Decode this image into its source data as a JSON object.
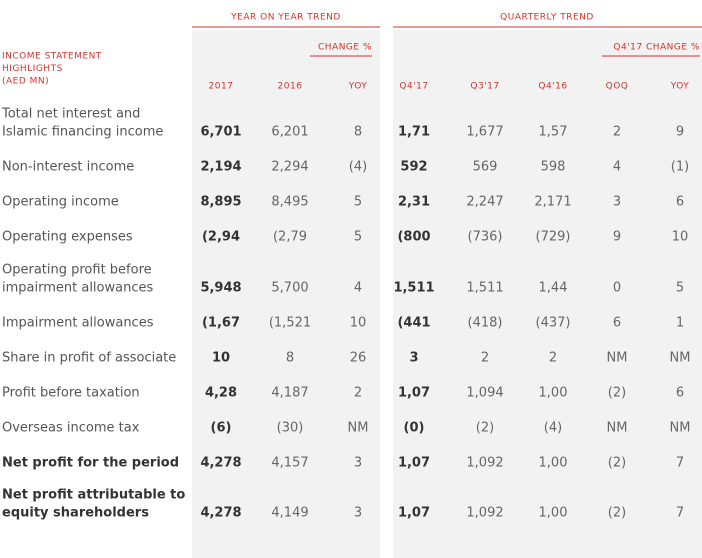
{
  "header": {
    "group_year": "YEAR ON YEAR TREND",
    "group_quarter": "QUARTERLY TREND",
    "change_year": "CHANGE %",
    "change_quarter": "Q4'17 CHANGE %",
    "row_header": [
      "INCOME STATEMENT",
      "HIGHLIGHTS",
      "(AED MN)"
    ],
    "columns": [
      "2017",
      "2016",
      "YOY",
      "Q4'17",
      "Q3'17",
      "Q4'16",
      "QOQ",
      "YOY"
    ]
  },
  "table": {
    "rows": [
      {
        "label": [
          "Total net interest and",
          "Islamic financing income"
        ],
        "cells": [
          "6,701",
          "6,201",
          "8",
          "1,71",
          "1,677",
          "1,57",
          "2",
          "9"
        ]
      },
      {
        "label": [
          "Non-interest income"
        ],
        "cells": [
          "2,194",
          "2,294",
          "(4)",
          "592",
          "569",
          "598",
          "4",
          "(1)"
        ]
      },
      {
        "label": [
          "Operating income"
        ],
        "cells": [
          "8,895",
          "8,495",
          "5",
          "2,31",
          "2,247",
          "2,171",
          "3",
          "6"
        ]
      },
      {
        "label": [
          "Operating expenses"
        ],
        "cells": [
          "(2,94",
          "(2,79",
          "5",
          "(800",
          "(736)",
          "(729)",
          "9",
          "10"
        ]
      },
      {
        "label": [
          "Operating profit before",
          "impairment allowances"
        ],
        "cells": [
          "5,948",
          "5,700",
          "4",
          "1,511",
          "1,511",
          "1,44",
          "0",
          "5"
        ]
      },
      {
        "label": [
          "Impairment allowances"
        ],
        "cells": [
          "(1,67",
          "(1,521",
          "10",
          "(441",
          "(418)",
          "(437)",
          "6",
          "1"
        ]
      },
      {
        "label": [
          "Share in profit of associate"
        ],
        "cells": [
          "10",
          "8",
          "26",
          "3",
          "2",
          "2",
          "NM",
          "NM"
        ]
      },
      {
        "label": [
          "Profit before taxation"
        ],
        "cells": [
          "4,28",
          "4,187",
          "2",
          "1,07",
          "1,094",
          "1,00",
          "(2)",
          "6"
        ]
      },
      {
        "label": [
          "Overseas income tax"
        ],
        "cells": [
          "(6)",
          "(30)",
          "NM",
          "(0)",
          "(2)",
          "(4)",
          "NM",
          "NM"
        ]
      },
      {
        "label": [
          "Net profit for the period"
        ],
        "cells": [
          "4,278",
          "4,157",
          "3",
          "1,07",
          "1,092",
          "1,00",
          "(2)",
          "7"
        ],
        "strong": true
      },
      {
        "label": [
          "Net profit attributable to",
          "equity shareholders"
        ],
        "cells": [
          "4,278",
          "4,149",
          "3",
          "1,07",
          "1,092",
          "1,00",
          "(2)",
          "7"
        ],
        "strong": true
      }
    ]
  }
}
